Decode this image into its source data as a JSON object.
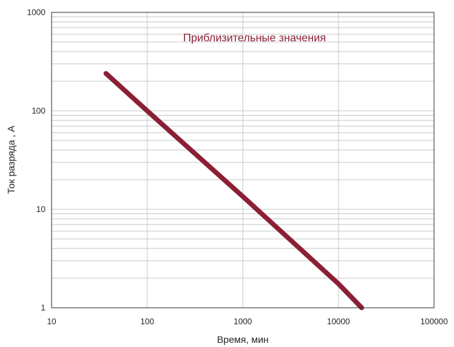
{
  "chart_data": {
    "type": "line",
    "title": "",
    "annotation": "Приблизительные значения",
    "xlabel": "Время, мин",
    "ylabel": "Ток разряда , А",
    "x_scale": "log",
    "y_scale": "log",
    "xlim": [
      10,
      100000
    ],
    "ylim": [
      1,
      1000
    ],
    "x_ticks": [
      "10",
      "100",
      "1000",
      "10000",
      "100000"
    ],
    "y_ticks": [
      "1",
      "10",
      "100",
      "1000"
    ],
    "grid": true,
    "legend": "none",
    "series": [
      {
        "x": [
          37,
          100,
          1000,
          10000,
          17500
        ],
        "y": [
          240,
          100,
          13.5,
          1.75,
          1
        ]
      }
    ],
    "colors": {
      "line": "#8a1f35",
      "annotation": "#8a1f35",
      "grid": "#c8c8c8",
      "axis": "#333333",
      "shadow": "#d0d0d0"
    }
  }
}
